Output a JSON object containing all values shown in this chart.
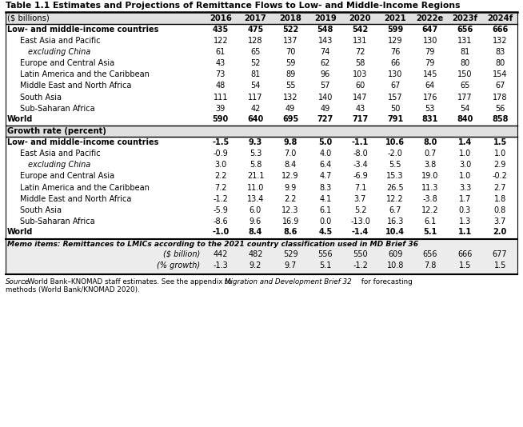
{
  "title": "Table 1.1 Estimates and Projections of Remittance Flows to Low- and Middle-Income Regions",
  "col_headers": [
    "($ billions)",
    "2016",
    "2017",
    "2018",
    "2019",
    "2020",
    "2021",
    "2022e",
    "2023f",
    "2024f"
  ],
  "section1_bold_label": "Low- and middle-income countries",
  "section1_bold_values": [
    "435",
    "475",
    "522",
    "548",
    "542",
    "599",
    "647",
    "656",
    "666"
  ],
  "section1_rows": [
    [
      "East Asia and Pacific",
      "122",
      "128",
      "137",
      "143",
      "131",
      "129",
      "130",
      "131",
      "132"
    ],
    [
      "excluding China",
      "61",
      "65",
      "70",
      "74",
      "72",
      "76",
      "79",
      "81",
      "83"
    ],
    [
      "Europe and Central Asia",
      "43",
      "52",
      "59",
      "62",
      "58",
      "66",
      "79",
      "80",
      "80"
    ],
    [
      "Latin America and the Caribbean",
      "73",
      "81",
      "89",
      "96",
      "103",
      "130",
      "145",
      "150",
      "154"
    ],
    [
      "Middle East and North Africa",
      "48",
      "54",
      "55",
      "57",
      "60",
      "67",
      "64",
      "65",
      "67"
    ],
    [
      "South Asia",
      "111",
      "117",
      "132",
      "140",
      "147",
      "157",
      "176",
      "177",
      "178"
    ],
    [
      "Sub-Saharan Africa",
      "39",
      "42",
      "49",
      "49",
      "43",
      "50",
      "53",
      "54",
      "56"
    ]
  ],
  "section1_italic_rows": [
    1
  ],
  "world1_label": "World",
  "world1_values": [
    "590",
    "640",
    "695",
    "727",
    "717",
    "791",
    "831",
    "840",
    "858"
  ],
  "growth_label": "Growth rate (percent)",
  "section2_bold_label": "Low- and middle-income countries",
  "section2_bold_values": [
    "-1.5",
    "9.3",
    "9.8",
    "5.0",
    "-1.1",
    "10.6",
    "8.0",
    "1.4",
    "1.5"
  ],
  "section2_rows": [
    [
      "East Asia and Pacific",
      "-0.9",
      "5.3",
      "7.0",
      "4.0",
      "-8.0",
      "-2.0",
      "0.7",
      "1.0",
      "1.0"
    ],
    [
      "excluding China",
      "3.0",
      "5.8",
      "8.4",
      "6.4",
      "-3.4",
      "5.5",
      "3.8",
      "3.0",
      "2.9"
    ],
    [
      "Europe and Central Asia",
      "2.2",
      "21.1",
      "12.9",
      "4.7",
      "-6.9",
      "15.3",
      "19.0",
      "1.0",
      "-0.2"
    ],
    [
      "Latin America and the Caribbean",
      "7.2",
      "11.0",
      "9.9",
      "8.3",
      "7.1",
      "26.5",
      "11.3",
      "3.3",
      "2.7"
    ],
    [
      "Middle East and North Africa",
      "-1.2",
      "13.4",
      "2.2",
      "4.1",
      "3.7",
      "12.2",
      "-3.8",
      "1.7",
      "1.8"
    ],
    [
      "South Asia",
      "-5.9",
      "6.0",
      "12.3",
      "6.1",
      "5.2",
      "6.7",
      "12.2",
      "0.3",
      "0.8"
    ],
    [
      "Sub-Saharan Africa",
      "-8.6",
      "9.6",
      "16.9",
      "0.0",
      "-13.0",
      "16.3",
      "6.1",
      "1.3",
      "3.7"
    ]
  ],
  "section2_italic_rows": [
    1
  ],
  "world2_label": "World",
  "world2_values": [
    "-1.0",
    "8.4",
    "8.6",
    "4.5",
    "-1.4",
    "10.4",
    "5.1",
    "1.1",
    "2.0"
  ],
  "memo_label": "Memo items: Remittances to LMICs according to the 2021 country classification used in MD Brief 36",
  "memo_row1_label": "($ billion)",
  "memo_row1_values": [
    "442",
    "482",
    "529",
    "556",
    "550",
    "609",
    "656",
    "666",
    "677"
  ],
  "memo_row2_label": "(% growth)",
  "memo_row2_values": [
    "-1.3",
    "9.2",
    "9.7",
    "5.1",
    "-1.2",
    "10.8",
    "7.8",
    "1.5",
    "1.5"
  ],
  "source_prefix": "Source",
  "source_colon_rest": ": World Bank–KNOMAD staff estimates. See the appendix to ",
  "source_italic": "Migration and Development Brief 32",
  "source_suffix": " for forecasting",
  "source_line2": "methods (World Bank/KNOMAD 2020).",
  "bg_color": "#ffffff",
  "gray_bg": "#e0e0e0",
  "memo_bg": "#ececec"
}
